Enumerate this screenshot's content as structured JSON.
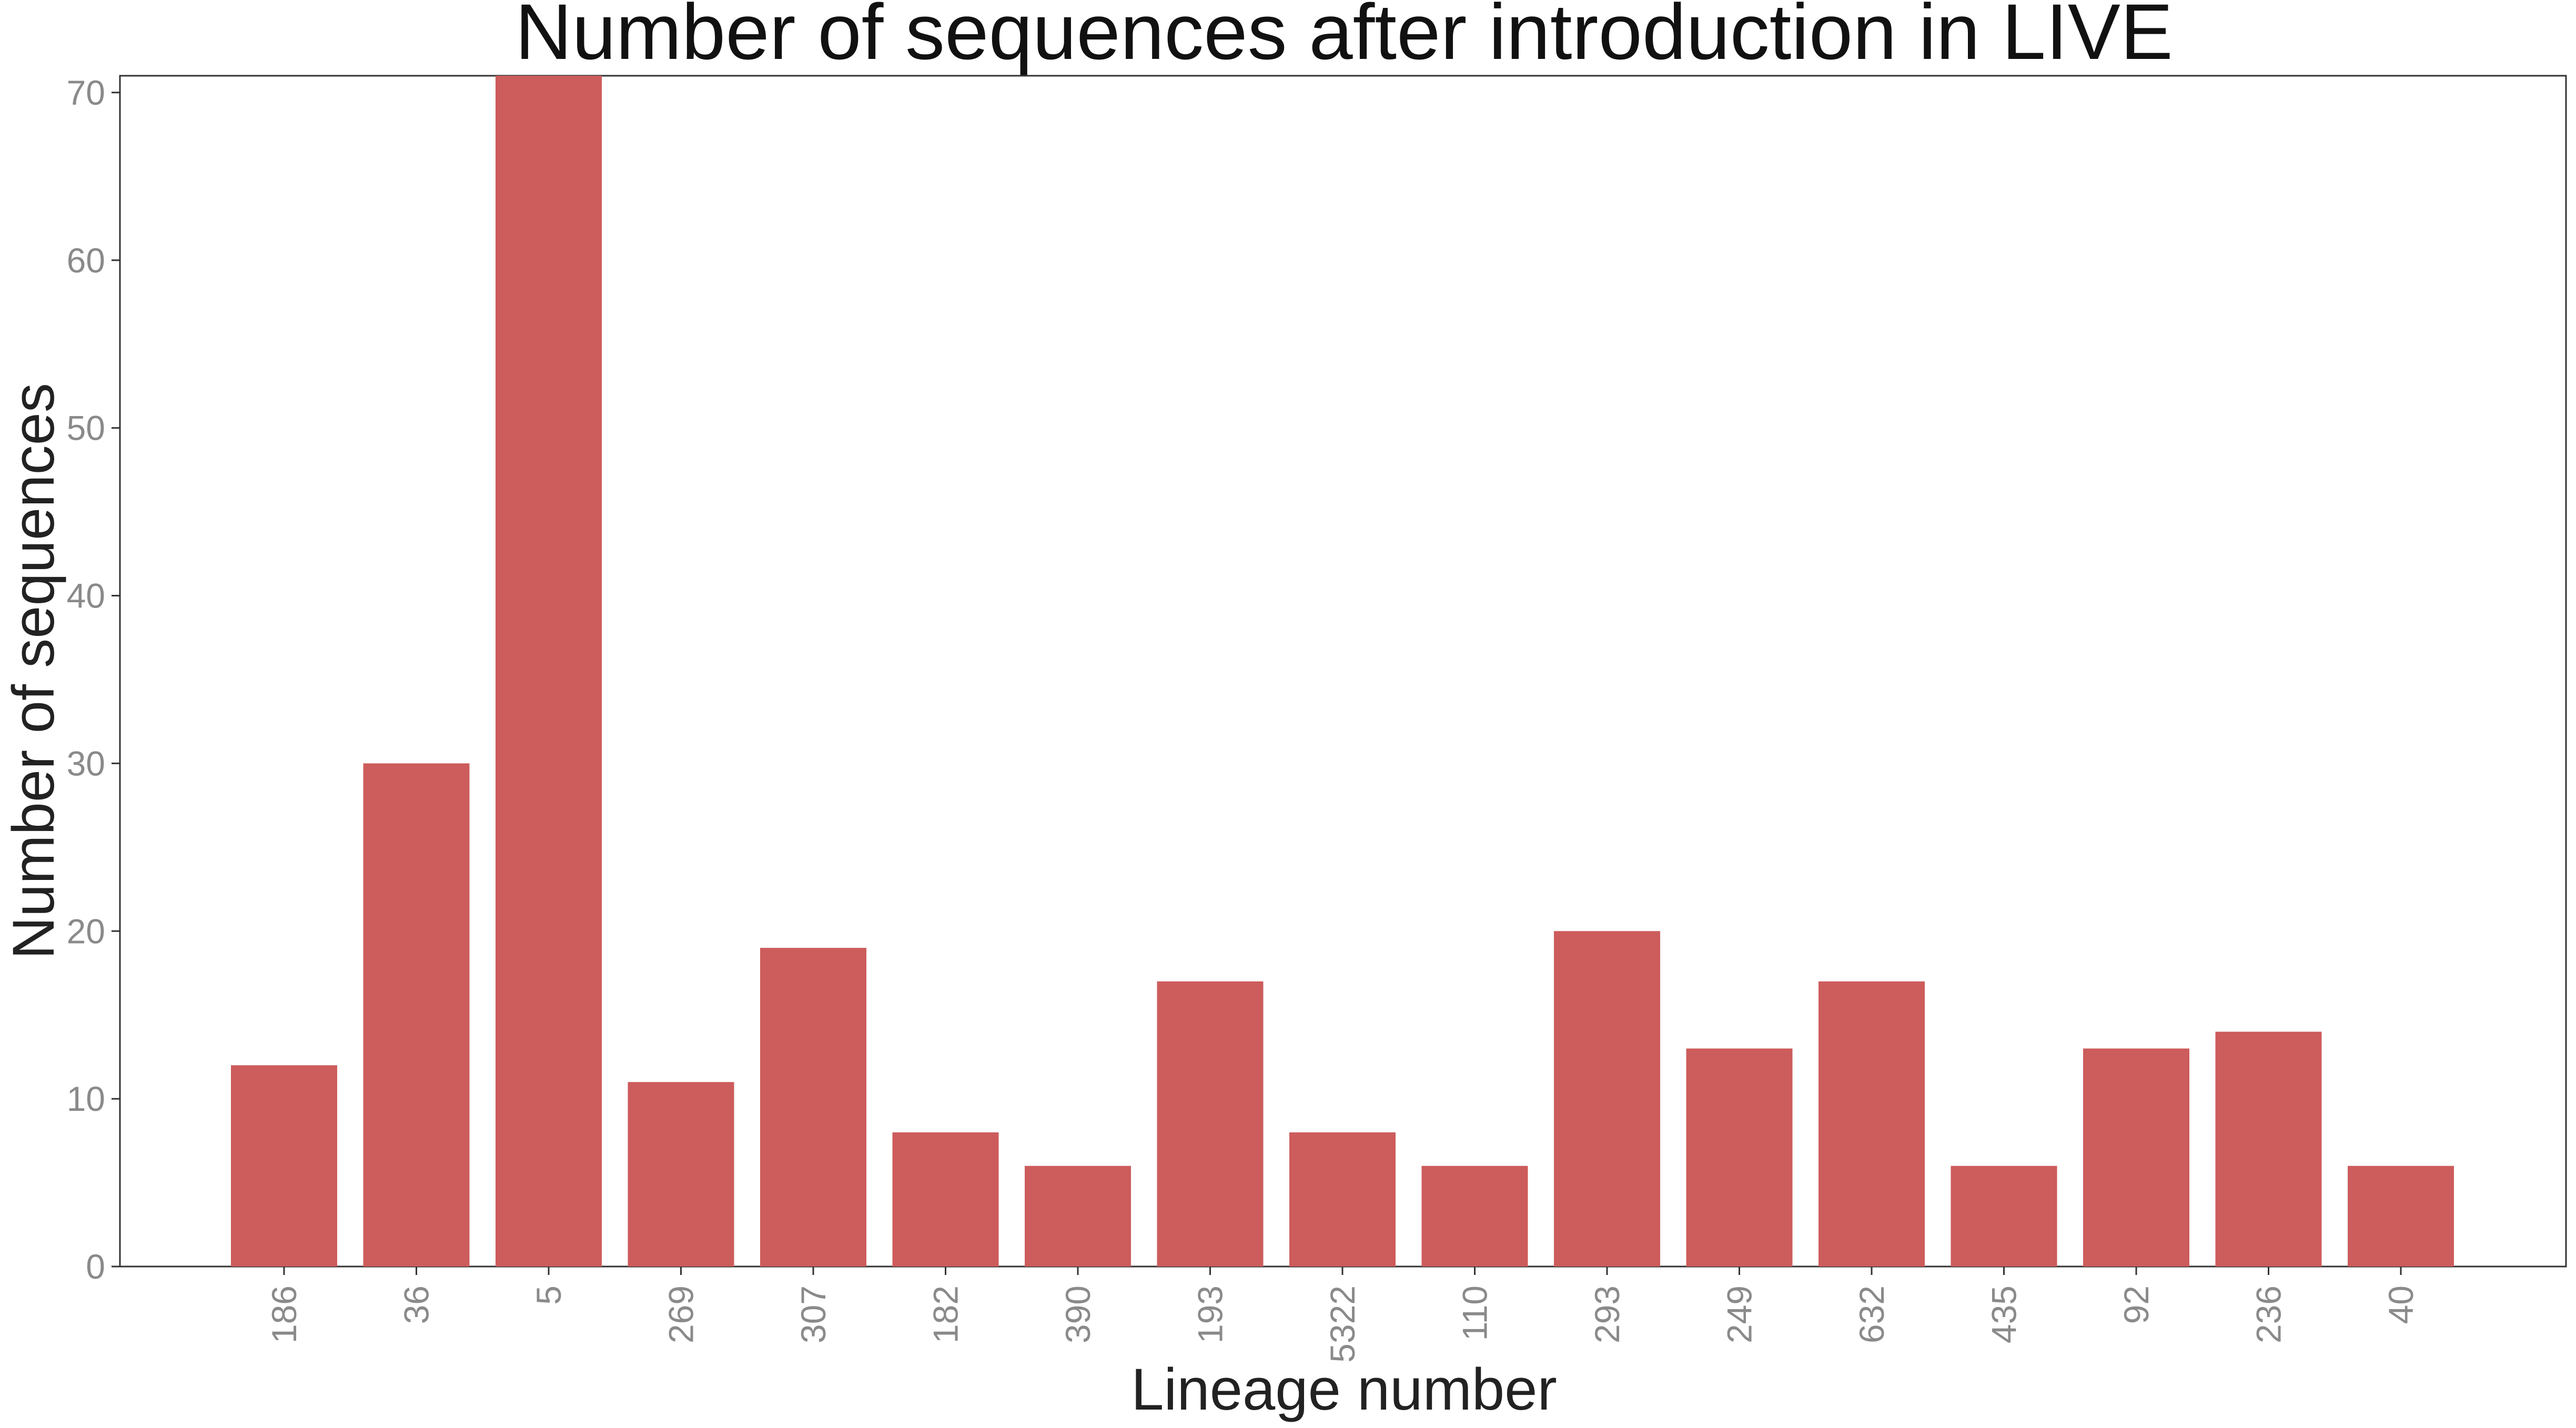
{
  "chart_data": {
    "type": "bar",
    "title": "Number of sequences after introduction in LIVE",
    "xlabel": "Lineage number",
    "ylabel": "Number of sequences",
    "categories": [
      "186",
      "36",
      "5",
      "269",
      "307",
      "182",
      "390",
      "193",
      "5322",
      "110",
      "293",
      "249",
      "632",
      "435",
      "92",
      "236",
      "40"
    ],
    "values": [
      12,
      30,
      71,
      11,
      19,
      8,
      6,
      17,
      8,
      6,
      20,
      13,
      17,
      6,
      13,
      14,
      6
    ],
    "ylim": [
      0,
      71
    ],
    "yticks": [
      0,
      10,
      20,
      30,
      40,
      50,
      60,
      70
    ],
    "bar_color": "#cd5c5c",
    "grid": false,
    "legend": "none"
  }
}
